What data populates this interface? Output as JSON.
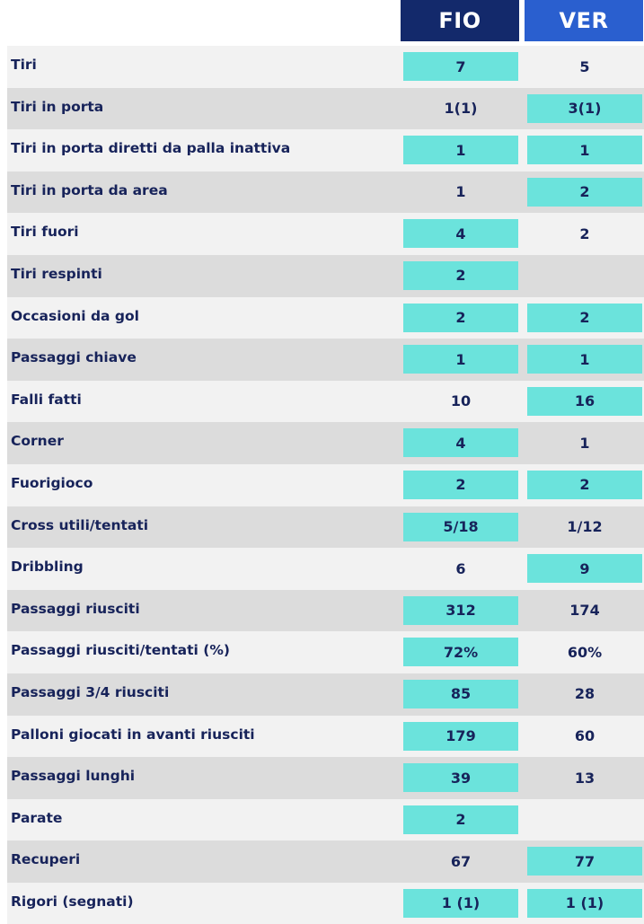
{
  "header": {
    "home_team": "FIO",
    "away_team": "VER",
    "home_color": "#13296b",
    "away_color": "#2a5fcf"
  },
  "colors": {
    "highlight": "#6be3dc",
    "row_light": "#f2f2f2",
    "row_dark": "#dcdcdc",
    "text": "#17235a"
  },
  "rows": [
    {
      "label": "Tiri",
      "home": "7",
      "away": "5",
      "home_hl": true,
      "away_hl": false
    },
    {
      "label": "Tiri in porta",
      "home": "1(1)",
      "away": "3(1)",
      "home_hl": false,
      "away_hl": true
    },
    {
      "label": "Tiri in porta diretti da palla inattiva",
      "home": "1",
      "away": "1",
      "home_hl": true,
      "away_hl": true
    },
    {
      "label": "Tiri in porta da area",
      "home": "1",
      "away": "2",
      "home_hl": false,
      "away_hl": true
    },
    {
      "label": "Tiri fuori",
      "home": "4",
      "away": "2",
      "home_hl": true,
      "away_hl": false
    },
    {
      "label": "Tiri respinti",
      "home": "2",
      "away": "",
      "home_hl": true,
      "away_hl": false
    },
    {
      "label": "Occasioni da gol",
      "home": "2",
      "away": "2",
      "home_hl": true,
      "away_hl": true
    },
    {
      "label": "Passaggi chiave",
      "home": "1",
      "away": "1",
      "home_hl": true,
      "away_hl": true
    },
    {
      "label": "Falli fatti",
      "home": "10",
      "away": "16",
      "home_hl": false,
      "away_hl": true
    },
    {
      "label": "Corner",
      "home": "4",
      "away": "1",
      "home_hl": true,
      "away_hl": false
    },
    {
      "label": "Fuorigioco",
      "home": "2",
      "away": "2",
      "home_hl": true,
      "away_hl": true
    },
    {
      "label": "Cross utili/tentati",
      "home": "5/18",
      "away": "1/12",
      "home_hl": true,
      "away_hl": false
    },
    {
      "label": "Dribbling",
      "home": "6",
      "away": "9",
      "home_hl": false,
      "away_hl": true
    },
    {
      "label": "Passaggi riusciti",
      "home": "312",
      "away": "174",
      "home_hl": true,
      "away_hl": false
    },
    {
      "label": "Passaggi riusciti/tentati (%)",
      "home": "72%",
      "away": "60%",
      "home_hl": true,
      "away_hl": false
    },
    {
      "label": "Passaggi 3/4 riusciti",
      "home": "85",
      "away": "28",
      "home_hl": true,
      "away_hl": false
    },
    {
      "label": "Palloni giocati in avanti riusciti",
      "home": "179",
      "away": "60",
      "home_hl": true,
      "away_hl": false
    },
    {
      "label": "Passaggi lunghi",
      "home": "39",
      "away": "13",
      "home_hl": true,
      "away_hl": false
    },
    {
      "label": "Parate",
      "home": "2",
      "away": "",
      "home_hl": true,
      "away_hl": false
    },
    {
      "label": "Recuperi",
      "home": "67",
      "away": "77",
      "home_hl": false,
      "away_hl": true
    },
    {
      "label": "Rigori (segnati)",
      "home": "1 (1)",
      "away": "1 (1)",
      "home_hl": true,
      "away_hl": true
    }
  ]
}
